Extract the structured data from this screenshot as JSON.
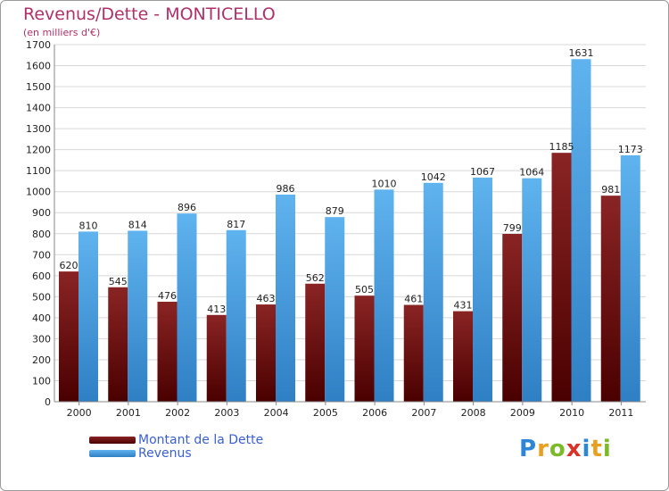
{
  "header": {
    "title": "Revenus/Dette - MONTICELLO",
    "subtitle": "(en milliers d'€)"
  },
  "legend": {
    "items": [
      {
        "label": "Montant de la Dette",
        "color": "#6b0a0a"
      },
      {
        "label": "Revenus",
        "color": "#4aa3e6"
      }
    ]
  },
  "logo": {
    "letters": [
      "P",
      "r",
      "o",
      "x",
      "i",
      "t",
      "i"
    ],
    "colors": [
      "#2e86d6",
      "#e8a020",
      "#7cba2a",
      "#d8342a",
      "#2e86d6",
      "#e8a020",
      "#7cba2a"
    ]
  },
  "chart_data": {
    "type": "bar",
    "title": "Revenus/Dette - MONTICELLO",
    "subtitle": "(en milliers d'€)",
    "categories": [
      "2000",
      "2001",
      "2002",
      "2003",
      "2004",
      "2005",
      "2006",
      "2007",
      "2008",
      "2009",
      "2010",
      "2011"
    ],
    "series": [
      {
        "name": "Montant de la Dette",
        "color": "#6b0a0a",
        "values": [
          620,
          545,
          476,
          413,
          463,
          562,
          505,
          461,
          431,
          799,
          1185,
          981
        ]
      },
      {
        "name": "Revenus",
        "color": "#4aa3e6",
        "values": [
          810,
          814,
          896,
          817,
          986,
          879,
          1010,
          1042,
          1067,
          1064,
          1631,
          1173
        ]
      }
    ],
    "ylim": [
      0,
      1700
    ],
    "ytick_step": 100,
    "grid": true,
    "legend_position": "bottom-left"
  }
}
